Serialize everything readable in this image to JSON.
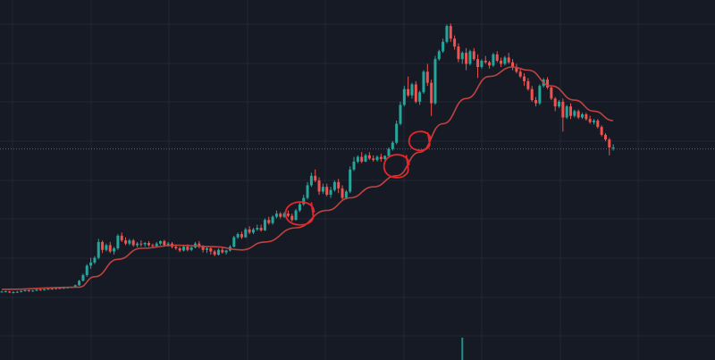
{
  "colors": {
    "background": "#161a25",
    "grid": "#222735",
    "up": "#26a69a",
    "down": "#ef5350",
    "moving_average": "#c0423f",
    "price_line": "#5d6472",
    "annotation": "#e5262a",
    "volume": "#26a69a"
  },
  "chart_data": {
    "type": "candlestick",
    "title": "",
    "xlabel": "",
    "ylabel": "",
    "grid": true,
    "ylim": [
      0,
      100
    ],
    "current_price": 57,
    "candles": [
      [
        0,
        11.5,
        12.0,
        11.8,
        11.5
      ],
      [
        1,
        11.6,
        12.1,
        11.9,
        11.5
      ],
      [
        2,
        11.8,
        12.0,
        11.5,
        11.3
      ],
      [
        3,
        11.5,
        11.9,
        11.6,
        11.2
      ],
      [
        4,
        11.6,
        12.0,
        11.7,
        11.4
      ],
      [
        5,
        11.7,
        12.2,
        12.0,
        11.5
      ],
      [
        6,
        12.0,
        12.5,
        12.2,
        11.8
      ],
      [
        7,
        12.2,
        12.4,
        11.9,
        11.7
      ],
      [
        8,
        11.9,
        12.3,
        12.1,
        11.7
      ],
      [
        9,
        12.1,
        12.6,
        12.4,
        11.9
      ],
      [
        10,
        12.4,
        12.7,
        12.3,
        12.1
      ],
      [
        11,
        12.3,
        12.6,
        12.5,
        12.1
      ],
      [
        12,
        12.5,
        12.9,
        12.7,
        12.3
      ],
      [
        13,
        12.7,
        13.0,
        12.6,
        12.4
      ],
      [
        14,
        12.6,
        13.0,
        12.9,
        12.4
      ],
      [
        15,
        12.9,
        13.2,
        12.8,
        12.6
      ],
      [
        16,
        12.8,
        13.1,
        13.0,
        12.6
      ],
      [
        17,
        13.0,
        13.3,
        13.1,
        12.8
      ],
      [
        18,
        13.1,
        13.4,
        13.2,
        12.9
      ],
      [
        19,
        13.2,
        14.0,
        13.8,
        13.0
      ],
      [
        20,
        13.8,
        15.5,
        15.2,
        13.6
      ],
      [
        21,
        15.2,
        17.5,
        17.0,
        15.0
      ],
      [
        22,
        17.0,
        20.5,
        20.0,
        16.5
      ],
      [
        23,
        20.0,
        22.5,
        21.0,
        19.0
      ],
      [
        24,
        21.0,
        23.0,
        22.5,
        20.5
      ],
      [
        25,
        22.5,
        28.5,
        27.5,
        22.0
      ],
      [
        26,
        27.5,
        28.0,
        25.0,
        24.0
      ],
      [
        27,
        25.0,
        27.0,
        26.5,
        24.5
      ],
      [
        28,
        26.5,
        27.5,
        24.5,
        24.0
      ],
      [
        29,
        24.5,
        26.0,
        25.5,
        23.5
      ],
      [
        30,
        25.5,
        30.0,
        29.5,
        25.0
      ],
      [
        31,
        29.5,
        30.5,
        28.0,
        27.5
      ],
      [
        32,
        28.0,
        29.0,
        27.0,
        26.5
      ],
      [
        33,
        27.0,
        28.5,
        28.0,
        26.5
      ],
      [
        34,
        28.0,
        28.5,
        26.5,
        26.0
      ],
      [
        35,
        26.5,
        27.5,
        27.0,
        25.8
      ],
      [
        36,
        27.0,
        28.0,
        26.8,
        26.0
      ],
      [
        37,
        26.8,
        27.5,
        27.2,
        26.0
      ],
      [
        38,
        27.2,
        27.8,
        26.5,
        26.0
      ],
      [
        39,
        26.5,
        27.0,
        26.2,
        25.5
      ],
      [
        40,
        26.2,
        27.5,
        27.0,
        25.9
      ],
      [
        41,
        27.0,
        28.0,
        27.8,
        26.5
      ],
      [
        42,
        27.8,
        28.2,
        26.5,
        26.0
      ],
      [
        43,
        26.5,
        27.5,
        27.0,
        26.0
      ],
      [
        44,
        27.0,
        27.5,
        26.0,
        25.5
      ],
      [
        45,
        26.0,
        26.8,
        25.5,
        25.0
      ],
      [
        46,
        25.5,
        26.0,
        24.8,
        24.3
      ],
      [
        47,
        24.8,
        26.5,
        26.0,
        24.5
      ],
      [
        48,
        26.0,
        26.8,
        25.0,
        24.5
      ],
      [
        49,
        25.0,
        26.0,
        25.8,
        24.6
      ],
      [
        50,
        25.8,
        27.5,
        27.0,
        25.5
      ],
      [
        51,
        27.0,
        27.8,
        26.0,
        25.5
      ],
      [
        52,
        26.0,
        26.5,
        25.0,
        24.2
      ],
      [
        53,
        25.0,
        26.0,
        25.5,
        24.0
      ],
      [
        54,
        25.5,
        25.8,
        24.5,
        23.5
      ],
      [
        55,
        24.5,
        25.0,
        23.5,
        23.0
      ],
      [
        56,
        23.5,
        25.5,
        25.0,
        23.2
      ],
      [
        57,
        25.0,
        26.0,
        24.2,
        23.8
      ],
      [
        58,
        24.2,
        25.0,
        24.8,
        23.5
      ],
      [
        59,
        24.8,
        26.5,
        26.0,
        24.5
      ],
      [
        60,
        26.0,
        29.5,
        29.0,
        25.8
      ],
      [
        61,
        29.0,
        30.5,
        30.0,
        28.5
      ],
      [
        62,
        30.0,
        30.8,
        29.0,
        28.5
      ],
      [
        63,
        29.0,
        32.0,
        31.5,
        28.8
      ],
      [
        64,
        31.5,
        32.5,
        30.5,
        30.0
      ],
      [
        65,
        30.5,
        32.0,
        31.5,
        30.0
      ],
      [
        66,
        31.5,
        33.0,
        32.0,
        31.0
      ],
      [
        67,
        32.0,
        33.0,
        31.2,
        30.8
      ],
      [
        68,
        31.2,
        35.0,
        34.5,
        31.0
      ],
      [
        69,
        34.5,
        35.5,
        33.5,
        33.0
      ],
      [
        70,
        33.5,
        36.0,
        35.5,
        33.0
      ],
      [
        71,
        35.5,
        37.5,
        36.5,
        35.0
      ],
      [
        72,
        36.5,
        37.0,
        35.5,
        35.0
      ],
      [
        73,
        35.5,
        37.0,
        36.5,
        35.2
      ],
      [
        74,
        36.5,
        37.5,
        35.8,
        35.3
      ],
      [
        75,
        35.8,
        36.5,
        34.5,
        34.0
      ],
      [
        76,
        34.5,
        38.0,
        37.5,
        34.3
      ],
      [
        77,
        37.5,
        40.0,
        39.5,
        37.0
      ],
      [
        78,
        39.5,
        42.5,
        41.5,
        39.0
      ],
      [
        79,
        41.5,
        46.5,
        45.5,
        41.0
      ],
      [
        80,
        45.5,
        49.5,
        48.5,
        45.0
      ],
      [
        81,
        48.5,
        50.5,
        47.0,
        46.5
      ],
      [
        82,
        47.0,
        48.0,
        43.5,
        42.5
      ],
      [
        83,
        43.5,
        46.0,
        45.0,
        42.8
      ],
      [
        84,
        45.0,
        46.0,
        42.5,
        42.0
      ],
      [
        85,
        42.5,
        45.0,
        44.0,
        41.5
      ],
      [
        86,
        44.0,
        47.0,
        46.5,
        43.5
      ],
      [
        87,
        46.5,
        47.5,
        44.5,
        43.0
      ],
      [
        88,
        44.5,
        45.5,
        41.5,
        41.0
      ],
      [
        89,
        41.5,
        44.0,
        43.5,
        41.0
      ],
      [
        90,
        43.5,
        51.5,
        50.5,
        43.0
      ],
      [
        91,
        50.5,
        54.5,
        53.0,
        50.0
      ],
      [
        92,
        53.0,
        55.0,
        54.5,
        52.5
      ],
      [
        93,
        54.5,
        56.0,
        53.0,
        52.5
      ],
      [
        94,
        53.0,
        55.5,
        55.0,
        52.8
      ],
      [
        95,
        55.0,
        56.0,
        54.0,
        53.5
      ],
      [
        96,
        54.0,
        55.0,
        53.5,
        53.0
      ],
      [
        97,
        53.5,
        55.0,
        54.5,
        53.0
      ],
      [
        98,
        54.5,
        55.5,
        53.8,
        53.0
      ],
      [
        99,
        53.8,
        55.0,
        54.8,
        53.5
      ],
      [
        100,
        54.8,
        57.5,
        57.0,
        54.5
      ],
      [
        101,
        57.0,
        59.5,
        59.0,
        56.5
      ],
      [
        102,
        59.0,
        66.0,
        65.0,
        58.5
      ],
      [
        103,
        65.0,
        72.0,
        71.0,
        64.5
      ],
      [
        104,
        71.0,
        77.0,
        76.0,
        70.5
      ],
      [
        105,
        76.0,
        80.0,
        74.0,
        73.5
      ],
      [
        106,
        74.0,
        78.0,
        77.5,
        73.0
      ],
      [
        107,
        77.5,
        78.5,
        72.0,
        71.5
      ],
      [
        108,
        72.0,
        75.5,
        75.0,
        71.0
      ],
      [
        109,
        75.0,
        82.0,
        81.5,
        74.5
      ],
      [
        110,
        81.5,
        84.0,
        78.0,
        77.0
      ],
      [
        111,
        78.0,
        79.0,
        71.5,
        67.5
      ],
      [
        112,
        71.5,
        86.5,
        85.5,
        71.0
      ],
      [
        113,
        85.5,
        88.5,
        88.0,
        85.0
      ],
      [
        114,
        88.0,
        92.0,
        91.0,
        87.5
      ],
      [
        115,
        91.0,
        96.5,
        96.0,
        90.5
      ],
      [
        116,
        96.0,
        96.8,
        92.0,
        91.0
      ],
      [
        117,
        92.0,
        93.0,
        89.5,
        88.5
      ],
      [
        118,
        89.5,
        90.5,
        85.5,
        84.5
      ],
      [
        119,
        85.5,
        88.0,
        87.5,
        84.0
      ],
      [
        120,
        87.5,
        89.0,
        84.0,
        82.0
      ],
      [
        121,
        84.0,
        88.5,
        88.0,
        83.5
      ],
      [
        122,
        88.0,
        89.0,
        85.5,
        85.0
      ],
      [
        123,
        85.5,
        87.0,
        83.0,
        79.5
      ],
      [
        124,
        83.0,
        85.5,
        85.0,
        82.5
      ],
      [
        125,
        85.0,
        86.5,
        84.5,
        84.0
      ],
      [
        126,
        84.5,
        85.0,
        83.5,
        82.5
      ],
      [
        127,
        83.5,
        87.5,
        87.0,
        83.0
      ],
      [
        128,
        87.0,
        88.0,
        85.0,
        84.5
      ],
      [
        129,
        85.0,
        86.0,
        84.0,
        83.0
      ],
      [
        130,
        84.0,
        86.5,
        86.0,
        83.5
      ],
      [
        131,
        86.0,
        87.5,
        84.5,
        84.0
      ],
      [
        132,
        84.5,
        85.5,
        83.0,
        82.0
      ],
      [
        133,
        83.0,
        84.0,
        81.5,
        81.0
      ],
      [
        134,
        81.5,
        82.5,
        80.0,
        79.5
      ],
      [
        135,
        80.0,
        81.0,
        78.5,
        77.0
      ],
      [
        136,
        78.5,
        79.5,
        76.0,
        75.5
      ],
      [
        137,
        76.0,
        77.0,
        72.5,
        72.0
      ],
      [
        138,
        72.5,
        73.5,
        71.5,
        70.5
      ],
      [
        139,
        71.5,
        77.5,
        77.0,
        71.0
      ],
      [
        140,
        77.0,
        79.5,
        79.0,
        76.5
      ],
      [
        141,
        79.0,
        79.8,
        76.5,
        76.0
      ],
      [
        142,
        76.5,
        77.0,
        73.0,
        72.5
      ],
      [
        143,
        73.0,
        73.5,
        70.5,
        69.0
      ],
      [
        144,
        70.5,
        72.5,
        72.0,
        70.0
      ],
      [
        145,
        72.0,
        73.0,
        67.0,
        62.5
      ],
      [
        146,
        67.0,
        71.0,
        70.5,
        66.5
      ],
      [
        147,
        70.5,
        71.5,
        67.5,
        66.5
      ],
      [
        148,
        67.5,
        69.5,
        69.0,
        67.0
      ],
      [
        149,
        69.0,
        69.5,
        67.0,
        66.5
      ],
      [
        150,
        67.0,
        68.5,
        68.0,
        66.5
      ],
      [
        151,
        68.0,
        68.5,
        66.5,
        66.0
      ],
      [
        152,
        66.5,
        67.5,
        65.5,
        65.0
      ],
      [
        153,
        65.5,
        66.5,
        66.0,
        64.8
      ],
      [
        154,
        66.0,
        66.5,
        64.0,
        63.5
      ],
      [
        155,
        64.0,
        64.5,
        61.5,
        61.0
      ],
      [
        156,
        61.5,
        62.0,
        60.0,
        59.5
      ],
      [
        157,
        60.0,
        60.5,
        57.5,
        55.0
      ],
      [
        158,
        57.5,
        58.5,
        57.5,
        56.5
      ]
    ],
    "moving_average": [
      [
        0,
        12.5
      ],
      [
        20,
        13.2
      ],
      [
        24,
        16.5
      ],
      [
        30,
        22.0
      ],
      [
        36,
        25.5
      ],
      [
        45,
        26.5
      ],
      [
        55,
        26.0
      ],
      [
        62,
        25.0
      ],
      [
        68,
        27.5
      ],
      [
        76,
        32.0
      ],
      [
        84,
        37.5
      ],
      [
        90,
        41.5
      ],
      [
        96,
        45.0
      ],
      [
        102,
        48.5
      ],
      [
        108,
        56.0
      ],
      [
        114,
        65.0
      ],
      [
        120,
        73.0
      ],
      [
        126,
        80.0
      ],
      [
        132,
        83.0
      ],
      [
        136,
        82.0
      ],
      [
        142,
        77.0
      ],
      [
        148,
        72.5
      ],
      [
        153,
        69.0
      ],
      [
        158,
        66.0
      ]
    ],
    "volume_spike": {
      "index": 119,
      "value": 100
    },
    "annotations": [
      {
        "type": "circle",
        "center": [
          77,
          36.5
        ]
      },
      {
        "type": "circle",
        "center": [
          102,
          51.5
        ]
      },
      {
        "type": "circle",
        "center": [
          108,
          59.5
        ]
      }
    ]
  }
}
